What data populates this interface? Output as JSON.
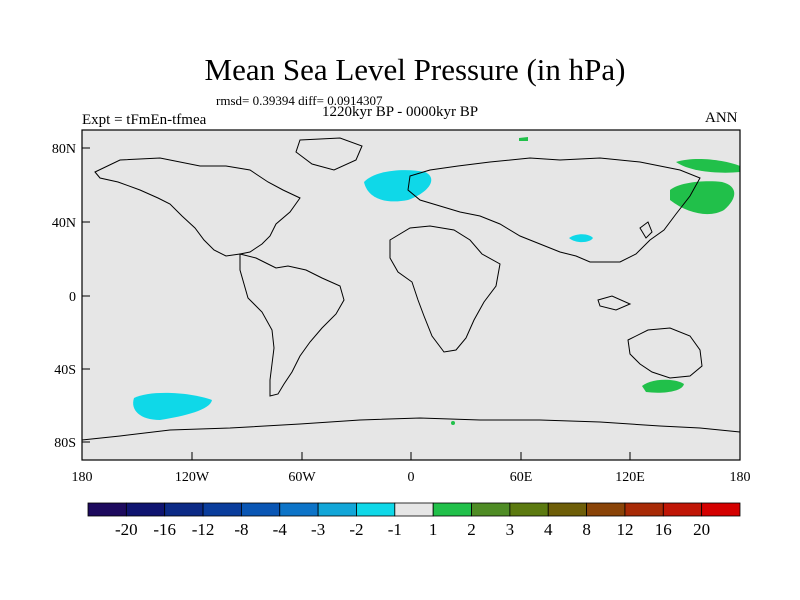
{
  "title": "Mean Sea Level Pressure (in hPa)",
  "stats": "rmsd= 0.39394 diff= 0.0914307",
  "period": "1220kyr BP - 0000kyr BP",
  "experiment": "Expt = tFmEn-tfmea",
  "season": "ANN",
  "x_ticks": [
    "180",
    "120W",
    "60W",
    "0",
    "60E",
    "120E",
    "180"
  ],
  "y_ticks": [
    "80N",
    "40N",
    "0",
    "40S",
    "80S"
  ],
  "colorbar": {
    "labels": [
      "-20",
      "-16",
      "-12",
      "-8",
      "-4",
      "-3",
      "-2",
      "-1",
      "1",
      "2",
      "3",
      "4",
      "8",
      "12",
      "16",
      "20"
    ],
    "colors": [
      "#1d0a5e",
      "#0f1470",
      "#0c2a86",
      "#0a3d9c",
      "#0a56b4",
      "#0d74c8",
      "#12a6d8",
      "#0fd8e8",
      "#e6e6e6",
      "#21c04a",
      "#4f8c25",
      "#5c7a10",
      "#6e5e08",
      "#8a4408",
      "#a82a06",
      "#c01606",
      "#d40000"
    ]
  },
  "colors": {
    "ocean": "#e6e6e6",
    "negative_anomaly": "#0fd8e8",
    "positive_anomaly": "#21c04a"
  }
}
